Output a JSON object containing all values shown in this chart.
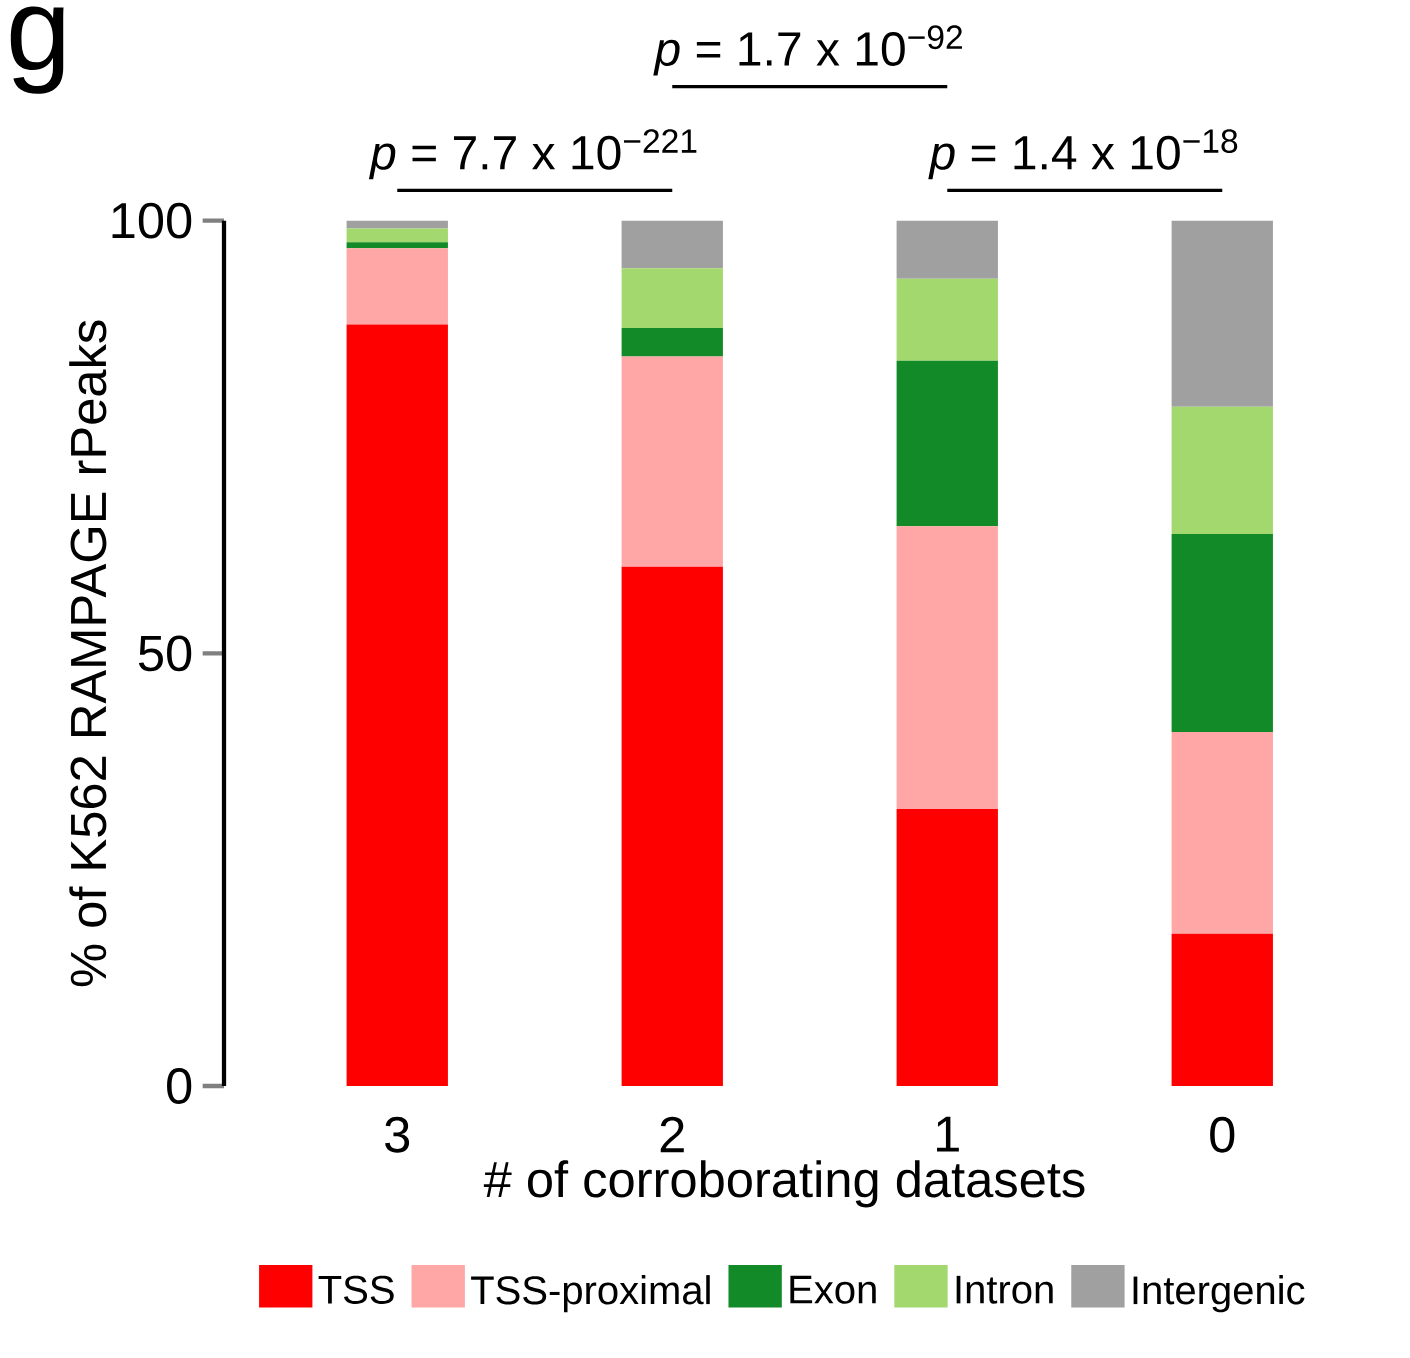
{
  "chart_data": {
    "type": "bar",
    "stacked": true,
    "title": "g",
    "xlabel": "# of corroborating datasets",
    "ylabel": "% of K562 RAMPAGE rPeaks",
    "categories": [
      "3",
      "2",
      "1",
      "0"
    ],
    "series": [
      {
        "name": "TSS",
        "color": "#ff0000",
        "values": [
          88,
          60,
          32,
          17.6
        ]
      },
      {
        "name": "TSS-proximal",
        "color": "#ffa6a6",
        "values": [
          8.8,
          24.3,
          32.7,
          23.3
        ]
      },
      {
        "name": "Exon",
        "color": "#138a28",
        "values": [
          0.7,
          3.3,
          19.1,
          22.9
        ]
      },
      {
        "name": "Intron",
        "color": "#a3d86f",
        "values": [
          1.6,
          6.9,
          9.5,
          14.7
        ]
      },
      {
        "name": "Intergenic",
        "color": "#a0a0a0",
        "values": [
          0.9,
          5.5,
          6.7,
          21.5
        ]
      }
    ],
    "ylim": [
      0,
      100
    ],
    "yticks": [
      0,
      50,
      100
    ],
    "legend": "bottom",
    "annotations": [
      "*p* = 7.7 x 10$^{−221}$",
      "*p* = 1.7 x 10$^{−92}$",
      "*p* = 1.4 x 10$^{−18}$"
    ]
  }
}
